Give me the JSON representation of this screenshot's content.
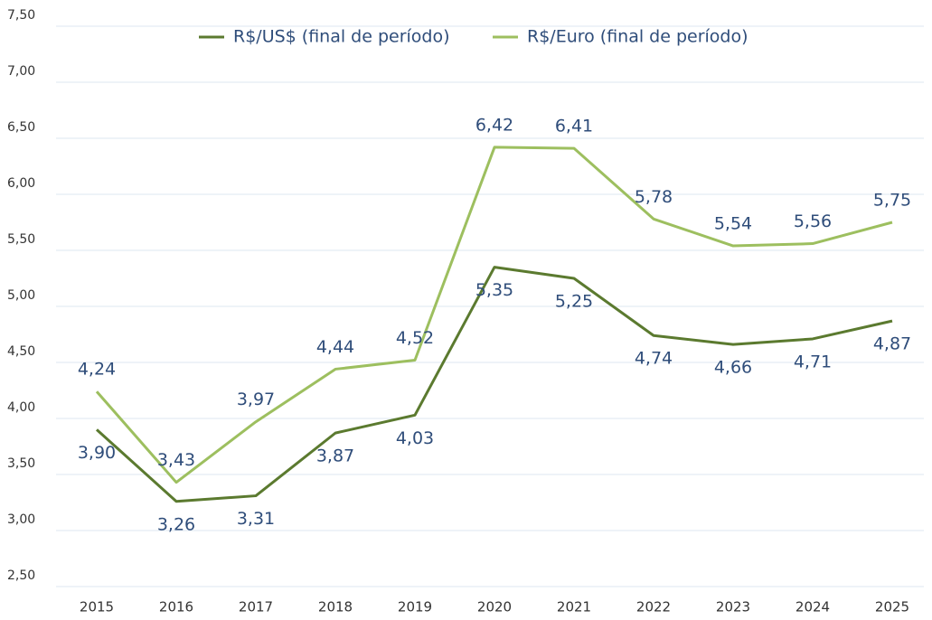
{
  "chart_data": {
    "type": "line",
    "categories": [
      "2015",
      "2016",
      "2017",
      "2018",
      "2019",
      "2020",
      "2021",
      "2022",
      "2023",
      "2024",
      "2025"
    ],
    "series": [
      {
        "name": "R$/US$ (final de período)",
        "color": "#5b7a2f",
        "values": [
          3.9,
          3.26,
          3.31,
          3.87,
          4.03,
          5.35,
          5.25,
          4.74,
          4.66,
          4.71,
          4.87
        ],
        "value_labels": [
          "3,90",
          "3,26",
          "3,31",
          "3,87",
          "4,03",
          "5,35",
          "5,25",
          "4,74",
          "4,66",
          "4,71",
          "4,87"
        ]
      },
      {
        "name": "R$/Euro (final de período)",
        "color": "#9dbf5f",
        "values": [
          4.24,
          3.43,
          3.97,
          4.44,
          4.52,
          6.42,
          6.41,
          5.78,
          5.54,
          5.56,
          5.75
        ],
        "value_labels": [
          "4,24",
          "3,43",
          "3,97",
          "4,44",
          "4,52",
          "6,42",
          "6,41",
          "5,78",
          "5,54",
          "5,56",
          "5,75"
        ]
      }
    ],
    "ylim": [
      2.5,
      7.5
    ],
    "yticks": [
      {
        "value": 2.5,
        "label": "2,50"
      },
      {
        "value": 3,
        "label": "3,00"
      },
      {
        "value": 3.5,
        "label": "3,50"
      },
      {
        "value": 4,
        "label": "4,00"
      },
      {
        "value": 4.5,
        "label": "4,50"
      },
      {
        "value": 5,
        "label": "5,00"
      },
      {
        "value": 5.5,
        "label": "5,50"
      },
      {
        "value": 6,
        "label": "6,00"
      },
      {
        "value": 6.5,
        "label": "6,50"
      },
      {
        "value": 7,
        "label": "7,00"
      },
      {
        "value": 7.5,
        "label": "7,50"
      }
    ],
    "grid": true,
    "legend": "top"
  }
}
